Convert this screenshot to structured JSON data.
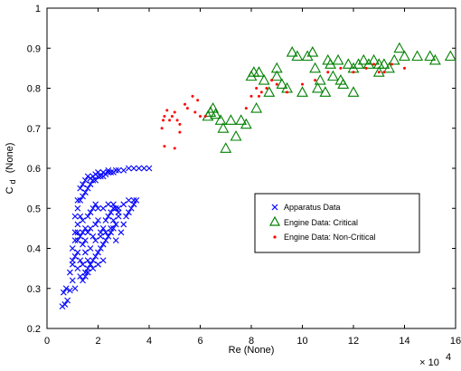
{
  "chart_data": {
    "type": "scatter",
    "xlabel": "Re (None)",
    "ylabel_main": "C",
    "ylabel_sub": "d",
    "ylabel_unit": "(None)",
    "x_multiplier": {
      "base": "× 10",
      "exp": "4"
    },
    "xlim": [
      0,
      16
    ],
    "ylim": [
      0.2,
      1.0
    ],
    "x_ticks": [
      "0",
      "2",
      "4",
      "6",
      "8",
      "10",
      "12",
      "14",
      "16"
    ],
    "y_ticks": [
      "0.2",
      "0.3",
      "0.4",
      "0.5",
      "0.6",
      "0.7",
      "0.8",
      "0.9",
      "1"
    ],
    "legend_position": "center-right",
    "grid": false,
    "series": [
      {
        "name": "Apparatus Data",
        "marker": "x",
        "color": "#0000FF",
        "points": [
          [
            0.6,
            0.255
          ],
          [
            0.7,
            0.26
          ],
          [
            0.8,
            0.27
          ],
          [
            0.65,
            0.29
          ],
          [
            0.75,
            0.3
          ],
          [
            0.9,
            0.295
          ],
          [
            1.0,
            0.32
          ],
          [
            1.1,
            0.3
          ],
          [
            0.9,
            0.34
          ],
          [
            1.0,
            0.36
          ],
          [
            1.1,
            0.38
          ],
          [
            1.2,
            0.35
          ],
          [
            1.3,
            0.33
          ],
          [
            1.4,
            0.32
          ],
          [
            1.5,
            0.34
          ],
          [
            1.6,
            0.35
          ],
          [
            1.7,
            0.36
          ],
          [
            1.8,
            0.37
          ],
          [
            1.9,
            0.38
          ],
          [
            2.0,
            0.39
          ],
          [
            2.1,
            0.4
          ],
          [
            2.2,
            0.41
          ],
          [
            2.3,
            0.42
          ],
          [
            2.4,
            0.43
          ],
          [
            2.5,
            0.44
          ],
          [
            2.6,
            0.45
          ],
          [
            2.7,
            0.46
          ],
          [
            1.0,
            0.4
          ],
          [
            1.1,
            0.42
          ],
          [
            1.2,
            0.44
          ],
          [
            1.3,
            0.43
          ],
          [
            1.4,
            0.41
          ],
          [
            1.5,
            0.39
          ],
          [
            1.6,
            0.37
          ],
          [
            1.2,
            0.39
          ],
          [
            1.3,
            0.37
          ],
          [
            1.4,
            0.36
          ],
          [
            1.5,
            0.42
          ],
          [
            1.6,
            0.44
          ],
          [
            1.7,
            0.45
          ],
          [
            1.8,
            0.43
          ],
          [
            1.9,
            0.46
          ],
          [
            2.0,
            0.47
          ],
          [
            2.1,
            0.44
          ],
          [
            2.2,
            0.45
          ],
          [
            2.3,
            0.47
          ],
          [
            2.4,
            0.48
          ],
          [
            2.5,
            0.49
          ],
          [
            2.6,
            0.5
          ],
          [
            2.7,
            0.5
          ],
          [
            2.8,
            0.49
          ],
          [
            1.1,
            0.44
          ],
          [
            1.2,
            0.46
          ],
          [
            1.3,
            0.48
          ],
          [
            1.4,
            0.47
          ],
          [
            1.5,
            0.45
          ],
          [
            1.6,
            0.48
          ],
          [
            1.7,
            0.49
          ],
          [
            1.8,
            0.5
          ],
          [
            1.9,
            0.51
          ],
          [
            2.0,
            0.5
          ],
          [
            2.2,
            0.5
          ],
          [
            2.4,
            0.51
          ],
          [
            2.6,
            0.51
          ],
          [
            2.8,
            0.5
          ],
          [
            3.0,
            0.51
          ],
          [
            3.2,
            0.52
          ],
          [
            3.4,
            0.52
          ],
          [
            3.5,
            0.52
          ],
          [
            1.2,
            0.5
          ],
          [
            1.3,
            0.52
          ],
          [
            1.4,
            0.53
          ],
          [
            1.5,
            0.54
          ],
          [
            1.6,
            0.55
          ],
          [
            1.7,
            0.56
          ],
          [
            1.8,
            0.57
          ],
          [
            1.9,
            0.57
          ],
          [
            2.0,
            0.58
          ],
          [
            2.1,
            0.58
          ],
          [
            2.2,
            0.58
          ],
          [
            2.3,
            0.585
          ],
          [
            2.4,
            0.59
          ],
          [
            2.5,
            0.59
          ],
          [
            2.6,
            0.59
          ],
          [
            2.7,
            0.595
          ],
          [
            2.8,
            0.595
          ],
          [
            3.0,
            0.595
          ],
          [
            3.2,
            0.6
          ],
          [
            3.4,
            0.6
          ],
          [
            3.6,
            0.6
          ],
          [
            3.8,
            0.6
          ],
          [
            4.0,
            0.6
          ],
          [
            1.1,
            0.48
          ],
          [
            1.2,
            0.52
          ],
          [
            1.3,
            0.55
          ],
          [
            1.4,
            0.56
          ],
          [
            1.5,
            0.57
          ],
          [
            1.6,
            0.58
          ],
          [
            1.7,
            0.575
          ],
          [
            1.8,
            0.58
          ],
          [
            1.9,
            0.585
          ],
          [
            2.0,
            0.59
          ],
          [
            2.2,
            0.59
          ],
          [
            2.4,
            0.595
          ],
          [
            1.5,
            0.33
          ],
          [
            1.6,
            0.34
          ],
          [
            1.8,
            0.35
          ],
          [
            2.0,
            0.36
          ],
          [
            2.2,
            0.37
          ],
          [
            1.7,
            0.4
          ],
          [
            1.9,
            0.42
          ],
          [
            2.1,
            0.43
          ],
          [
            2.3,
            0.44
          ],
          [
            2.5,
            0.45
          ],
          [
            2.7,
            0.42
          ],
          [
            2.9,
            0.44
          ],
          [
            3.0,
            0.46
          ],
          [
            3.1,
            0.48
          ],
          [
            3.2,
            0.49
          ],
          [
            3.3,
            0.5
          ],
          [
            3.4,
            0.51
          ],
          [
            1.2,
            0.42
          ],
          [
            1.4,
            0.44
          ],
          [
            1.0,
            0.37
          ],
          [
            2.6,
            0.47
          ],
          [
            2.8,
            0.48
          ]
        ]
      },
      {
        "name": "Engine Data: Critical",
        "marker": "triangle",
        "color": "#008000",
        "points": [
          [
            6.3,
            0.73
          ],
          [
            6.4,
            0.74
          ],
          [
            6.5,
            0.75
          ],
          [
            6.6,
            0.735
          ],
          [
            6.8,
            0.72
          ],
          [
            6.9,
            0.7
          ],
          [
            7.0,
            0.65
          ],
          [
            7.2,
            0.72
          ],
          [
            7.4,
            0.68
          ],
          [
            7.6,
            0.72
          ],
          [
            7.8,
            0.71
          ],
          [
            8.0,
            0.83
          ],
          [
            8.1,
            0.84
          ],
          [
            8.3,
            0.84
          ],
          [
            8.2,
            0.75
          ],
          [
            8.5,
            0.82
          ],
          [
            8.7,
            0.79
          ],
          [
            9.0,
            0.83
          ],
          [
            9.2,
            0.81
          ],
          [
            9.4,
            0.8
          ],
          [
            9.6,
            0.89
          ],
          [
            9.8,
            0.88
          ],
          [
            10.0,
            0.79
          ],
          [
            10.2,
            0.88
          ],
          [
            10.4,
            0.89
          ],
          [
            10.6,
            0.8
          ],
          [
            10.7,
            0.82
          ],
          [
            10.9,
            0.79
          ],
          [
            11.0,
            0.87
          ],
          [
            11.1,
            0.86
          ],
          [
            11.2,
            0.83
          ],
          [
            11.4,
            0.87
          ],
          [
            11.6,
            0.81
          ],
          [
            11.8,
            0.86
          ],
          [
            12.0,
            0.79
          ],
          [
            12.2,
            0.86
          ],
          [
            12.4,
            0.87
          ],
          [
            12.6,
            0.86
          ],
          [
            12.8,
            0.87
          ],
          [
            13.0,
            0.86
          ],
          [
            13.2,
            0.86
          ],
          [
            13.4,
            0.85
          ],
          [
            13.6,
            0.87
          ],
          [
            13.8,
            0.9
          ],
          [
            14.0,
            0.88
          ],
          [
            14.5,
            0.88
          ],
          [
            15.0,
            0.88
          ],
          [
            15.2,
            0.87
          ],
          [
            15.8,
            0.88
          ],
          [
            11.5,
            0.82
          ],
          [
            12.0,
            0.85
          ],
          [
            10.5,
            0.85
          ],
          [
            13.0,
            0.84
          ],
          [
            9.0,
            0.85
          ]
        ]
      },
      {
        "name": "Engine Data: Non-Critical",
        "marker": "dot",
        "color": "#FF0000",
        "points": [
          [
            4.5,
            0.7
          ],
          [
            4.55,
            0.72
          ],
          [
            4.6,
            0.73
          ],
          [
            4.7,
            0.745
          ],
          [
            4.8,
            0.72
          ],
          [
            4.9,
            0.73
          ],
          [
            5.0,
            0.74
          ],
          [
            5.1,
            0.72
          ],
          [
            5.0,
            0.65
          ],
          [
            5.2,
            0.69
          ],
          [
            5.4,
            0.76
          ],
          [
            5.5,
            0.75
          ],
          [
            5.7,
            0.78
          ],
          [
            5.8,
            0.74
          ],
          [
            5.9,
            0.77
          ],
          [
            6.0,
            0.73
          ],
          [
            4.6,
            0.655
          ],
          [
            5.2,
            0.71
          ],
          [
            6.2,
            0.73
          ],
          [
            8.0,
            0.78
          ],
          [
            8.2,
            0.8
          ],
          [
            8.4,
            0.79
          ],
          [
            8.6,
            0.8
          ],
          [
            8.8,
            0.82
          ],
          [
            9.0,
            0.81
          ],
          [
            9.4,
            0.79
          ],
          [
            10.0,
            0.81
          ],
          [
            10.5,
            0.82
          ],
          [
            11.0,
            0.84
          ],
          [
            11.5,
            0.85
          ],
          [
            12.0,
            0.84
          ],
          [
            12.5,
            0.85
          ],
          [
            13.0,
            0.84
          ],
          [
            13.5,
            0.86
          ],
          [
            14.0,
            0.85
          ],
          [
            13.2,
            0.84
          ],
          [
            12.8,
            0.86
          ],
          [
            8.3,
            0.78
          ],
          [
            7.8,
            0.75
          ]
        ]
      }
    ]
  }
}
